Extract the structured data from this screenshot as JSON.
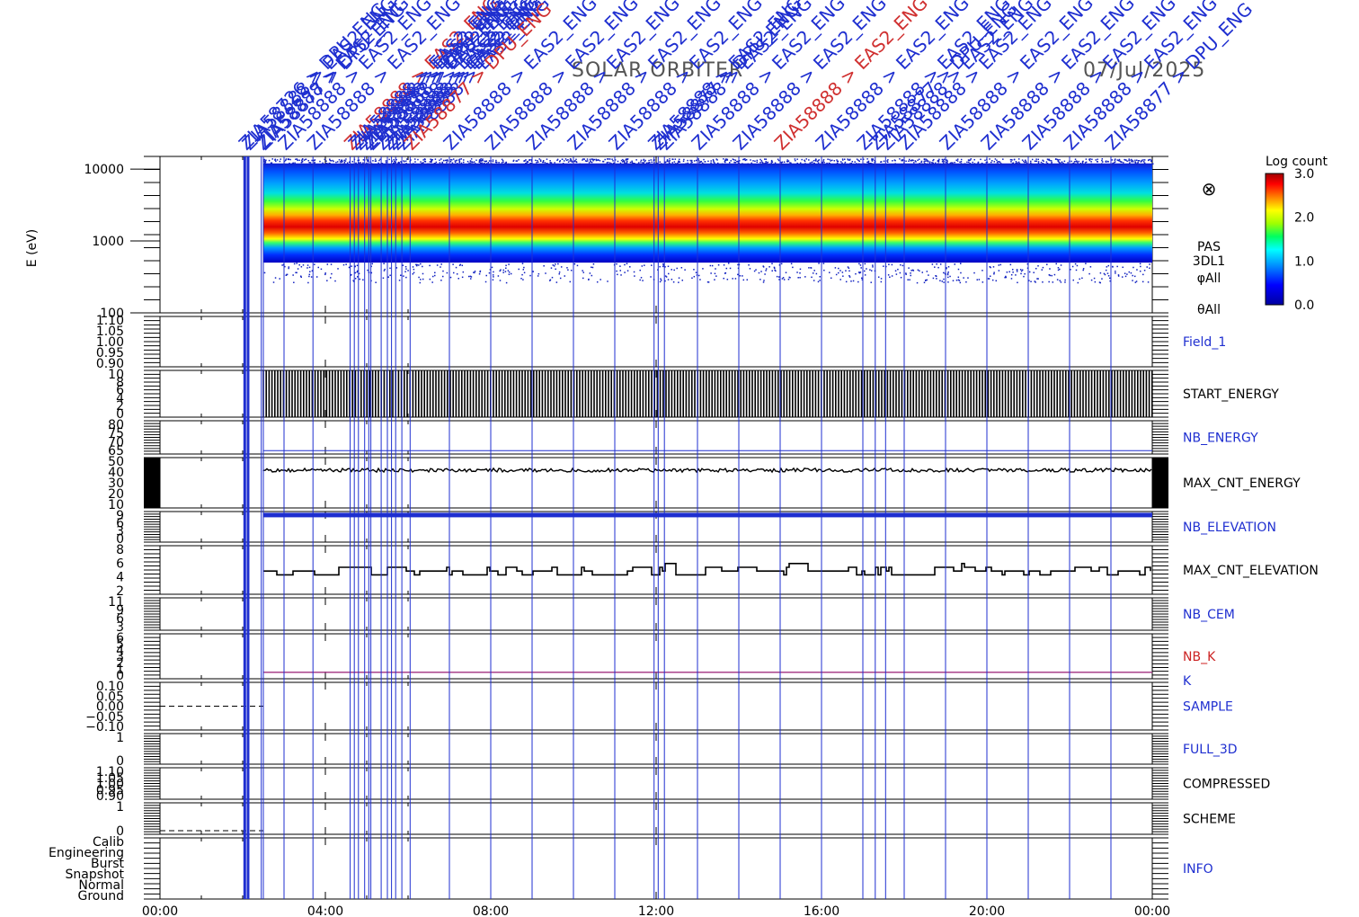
{
  "header": {
    "mission": "SOLAR ORBITER",
    "date": "07/Jul/2025"
  },
  "colors": {
    "event_line": "#1f2fd0",
    "event_label": "#1f2fd0",
    "event_label_red": "#d03030",
    "blue_panel_label": "#1f2fd0",
    "red_panel_label": "#cc2222",
    "axes": "#000000"
  },
  "chart_data": {
    "type": "line",
    "x_ticks": [
      "00:00",
      "04:00",
      "08:00",
      "12:00",
      "16:00",
      "20:00",
      "00:00"
    ],
    "x_range_hours": [
      0,
      24
    ],
    "events": {
      "label_prefix": "ZIA58888 > EAS2_ENG",
      "note": "event markers annotated diagonally across the top",
      "times_hours": [
        2.05,
        2.13,
        2.45,
        2.5,
        3.0,
        3.7,
        4.6,
        4.7,
        4.8,
        4.95,
        5.05,
        5.1,
        5.35,
        5.5,
        5.6,
        5.7,
        5.85,
        6.05,
        7.0,
        8.0,
        9.0,
        10.0,
        11.0,
        11.95,
        12.05,
        12.2,
        13.0,
        14.0,
        15.0,
        16.0,
        17.0,
        17.3,
        17.55,
        18.0,
        19.0,
        20.0,
        21.0,
        22.0,
        23.0
      ],
      "sample_labels": [
        "ZIA58726 > DPU_ENG",
        "ZIA58888 > EAS2_ENG",
        "ZIA58877 > DPU_ENG",
        "ZIA58888 > EAS2_ENG"
      ]
    },
    "panels": [
      {
        "name": "energy-spectrogram",
        "type": "heatmap",
        "ylabel": "E (eV)",
        "yscale": "log",
        "ylim": [
          100,
          15000
        ],
        "y_ticks": [
          "10000",
          "1000",
          "100"
        ],
        "side_labels": [
          "PAS",
          "3DL1",
          "φAll",
          "θAll"
        ],
        "otimes_symbol": "⊗",
        "colorbar": {
          "title": "Log count",
          "ticks": [
            "3.0",
            "2.0",
            "1.0",
            "0.0"
          ],
          "range": [
            0,
            3
          ]
        },
        "data_start_hours": 2.5,
        "peak_energy_ev": 2000,
        "band_energy_ev": [
          500,
          12000
        ]
      },
      {
        "name": "field-1",
        "label": "Field_1",
        "label_color": "blue",
        "y_ticks": [
          "1.10",
          "1.05",
          "1.00",
          "0.95",
          "0.90"
        ],
        "ylim": [
          0.9,
          1.1
        ],
        "data": "none"
      },
      {
        "name": "start-energy",
        "label": "START_ENERGY",
        "label_color": "black",
        "y_ticks": [
          "10",
          "8",
          "6",
          "4",
          "2",
          "0"
        ],
        "ylim": [
          0,
          10
        ],
        "data": "dense oscillation 0-10 from 02:30"
      },
      {
        "name": "nb-energy",
        "label": "NB_ENERGY",
        "label_color": "blue",
        "y_ticks": [
          "80",
          "75",
          "70",
          "65"
        ],
        "ylim": [
          62,
          82
        ],
        "value": 64
      },
      {
        "name": "max-cnt-energy",
        "label": "MAX_CNT_ENERGY",
        "label_color": "black",
        "y_ticks": [
          "50",
          "40",
          "30",
          "20",
          "10"
        ],
        "ylim": [
          10,
          50
        ],
        "mean": 40
      },
      {
        "name": "nb-elevation",
        "label": "NB_ELEVATION",
        "label_color": "blue",
        "y_ticks": [
          "9",
          "6",
          "3",
          "0"
        ],
        "ylim": [
          0,
          10
        ],
        "value": 9
      },
      {
        "name": "max-cnt-elevation",
        "label": "MAX_CNT_ELEVATION",
        "label_color": "black",
        "y_ticks": [
          "8",
          "6",
          "4",
          "2"
        ],
        "ylim": [
          0,
          9
        ],
        "mean": 4.3
      },
      {
        "name": "nb-cem",
        "label": "NB_CEM",
        "label_color": "blue",
        "y_ticks": [
          "11",
          "9",
          "6",
          "3"
        ],
        "ylim": [
          0,
          12
        ],
        "data": "none"
      },
      {
        "name": "nb-k",
        "label": "NB_K",
        "label_color": "red",
        "label2": "K",
        "y_ticks": [
          "6",
          "5",
          "4",
          "3",
          "2",
          "1",
          "0"
        ],
        "ylim": [
          0,
          7
        ],
        "value": 1
      },
      {
        "name": "sample",
        "label": "SAMPLE",
        "label_color": "blue",
        "y_ticks": [
          "0.10",
          "0.05",
          "0.00",
          "−0.05",
          "−0.10"
        ],
        "ylim": [
          -0.1,
          0.1
        ],
        "data": "dashed zero before 02:30"
      },
      {
        "name": "full-3d",
        "label": "FULL_3D",
        "label_color": "blue",
        "y_ticks": [
          "1",
          "0"
        ],
        "ylim": [
          0,
          1
        ],
        "data": "none"
      },
      {
        "name": "compressed",
        "label": "COMPRESSED",
        "label_color": "black",
        "y_ticks": [
          "1.10",
          "1.05",
          "1.00",
          "0.95",
          "0.90"
        ],
        "ylim": [
          0.9,
          1.1
        ],
        "data": "none"
      },
      {
        "name": "scheme",
        "label": "SCHEME",
        "label_color": "black",
        "y_ticks": [
          "1",
          "0"
        ],
        "ylim": [
          0,
          1
        ],
        "data": "dashed zero before 02:30"
      },
      {
        "name": "info",
        "label": "INFO",
        "label_color": "blue",
        "y_ticks": [
          "Calib",
          "Engineering",
          "Burst",
          "Snapshot",
          "Normal",
          "Ground"
        ],
        "data": "none"
      }
    ]
  }
}
